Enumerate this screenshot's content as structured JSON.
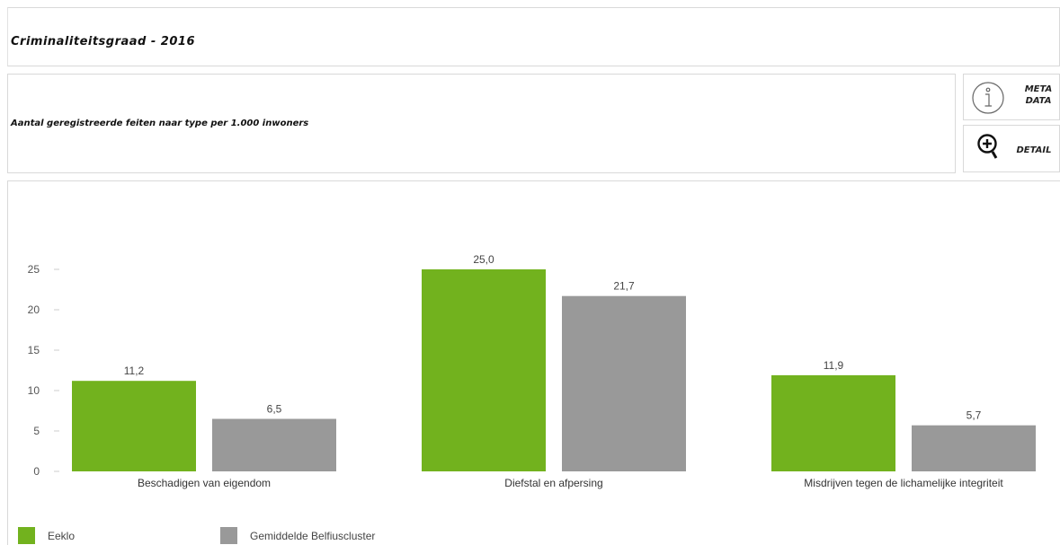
{
  "title": "Criminaliteitsgraad - 2016",
  "subtitle": "Aantal geregistreerde feiten naar type per 1.000 inwoners",
  "buttons": {
    "meta_line1": "META",
    "meta_line2": "DATA",
    "detail": "DETAIL",
    "meta_icon": "info-icon",
    "detail_icon": "zoom-in-icon"
  },
  "colors": {
    "eeklo": "#72b21e",
    "cluster": "#999999"
  },
  "chart_data": {
    "type": "bar",
    "categories": [
      "Beschadigen van eigendom",
      "Diefstal en afpersing",
      "Misdrijven tegen de lichamelijke integriteit"
    ],
    "series": [
      {
        "name": "Eeklo",
        "values": [
          11.2,
          25.0,
          11.9
        ],
        "labels": [
          "11,2",
          "25,0",
          "11,9"
        ]
      },
      {
        "name": "Gemiddelde Belfiuscluster",
        "values": [
          6.5,
          21.7,
          5.7
        ],
        "labels": [
          "6,5",
          "21,7",
          "5,7"
        ]
      }
    ],
    "yticks": [
      "0",
      "5",
      "10",
      "15",
      "20",
      "25"
    ],
    "ylim": [
      0,
      25
    ],
    "grid": false,
    "legend_position": "bottom-left"
  }
}
